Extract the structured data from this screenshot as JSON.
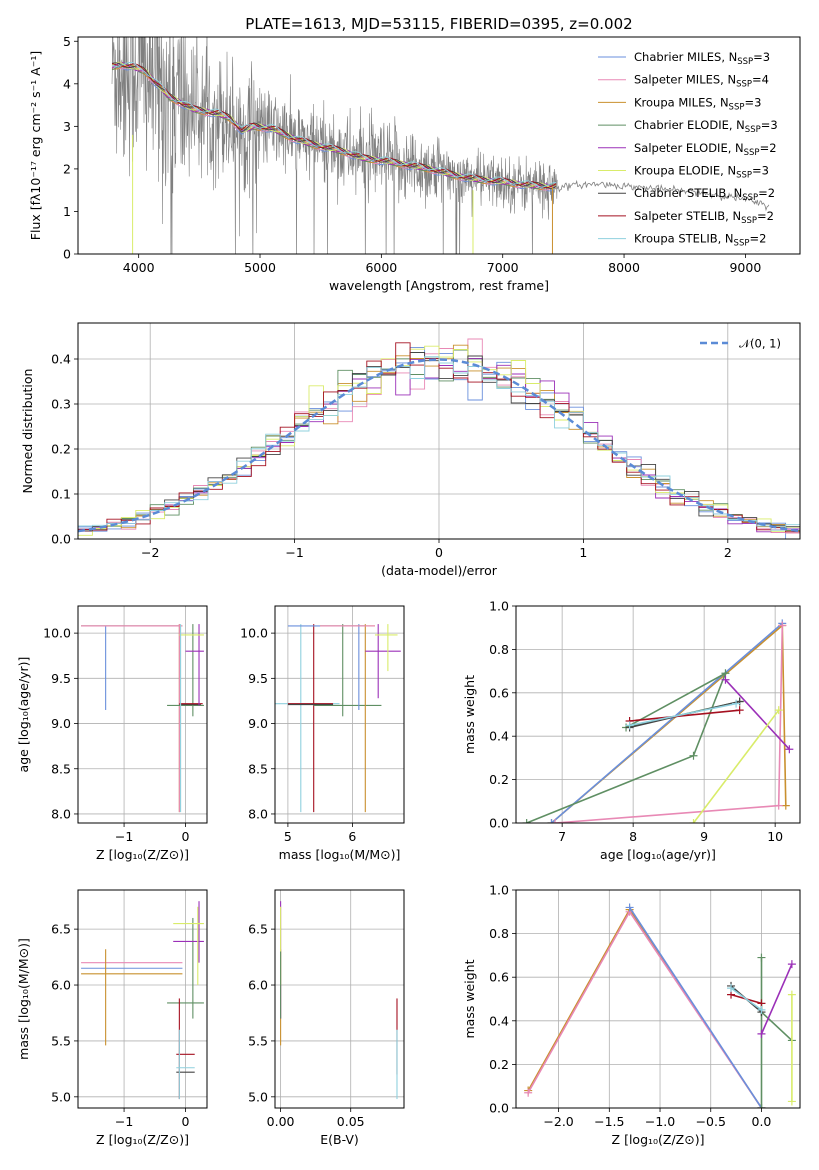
{
  "colors": {
    "Chabrier MILES": "#6a8fdc",
    "Salpeter MILES": "#e889b5",
    "Kroupa MILES": "#c9902e",
    "Chabrier ELODIE": "#5f8f63",
    "Salpeter ELODIE": "#9b30b8",
    "Kroupa ELODIE": "#d9ec6a",
    "Chabrier STELIB": "#444444",
    "Salpeter STELIB": "#a51020",
    "Kroupa STELIB": "#8fd0de",
    "data": "#808080",
    "normal": "#5b8bd6"
  },
  "chart_data": [
    {
      "id": "spectrum",
      "type": "line",
      "title": "PLATE=1613, MJD=53115, FIBERID=0395, z=0.002",
      "xlabel": "wavelength [Angstrom, rest frame]",
      "ylabel": "Flux [fλ10⁻¹⁷ erg cm⁻² s⁻¹ A⁻¹]",
      "xlim": [
        3500,
        9450
      ],
      "ylim": [
        0,
        5.1
      ],
      "xticks": [
        4000,
        5000,
        6000,
        7000,
        8000,
        9000
      ],
      "yticks": [
        0,
        1,
        2,
        3,
        4,
        5
      ],
      "grid": false,
      "legend_position": "top-right",
      "legend": [
        {
          "series": "Chabrier MILES",
          "label": "Chabrier MILES, N",
          "sub": "SSP",
          "tail": "=3"
        },
        {
          "series": "Salpeter MILES",
          "label": "Salpeter MILES, N",
          "sub": "SSP",
          "tail": "=4"
        },
        {
          "series": "Kroupa MILES",
          "label": "Kroupa MILES, N",
          "sub": "SSP",
          "tail": "=3"
        },
        {
          "series": "Chabrier ELODIE",
          "label": "Chabrier ELODIE, N",
          "sub": "SSP",
          "tail": "=3"
        },
        {
          "series": "Salpeter ELODIE",
          "label": "Salpeter ELODIE, N",
          "sub": "SSP",
          "tail": "=2"
        },
        {
          "series": "Kroupa ELODIE",
          "label": "Kroupa ELODIE, N",
          "sub": "SSP",
          "tail": "=3"
        },
        {
          "series": "Chabrier STELIB",
          "label": "Chabrier STELIB, N",
          "sub": "SSP",
          "tail": "=2"
        },
        {
          "series": "Salpeter STELIB",
          "label": "Salpeter STELIB, N",
          "sub": "SSP",
          "tail": "=2"
        },
        {
          "series": "Kroupa STELIB",
          "label": "Kroupa STELIB, N",
          "sub": "SSP",
          "tail": "=2"
        }
      ],
      "model_continuum": {
        "x": [
          3780,
          3850,
          3950,
          4050,
          4150,
          4250,
          4350,
          4450,
          4550,
          4650,
          4750,
          4850,
          4950,
          5100,
          5250,
          5400,
          5550,
          5700,
          5850,
          6000,
          6200,
          6400,
          6600,
          6800,
          7000,
          7200,
          7400
        ],
        "y": [
          4.4,
          4.45,
          4.4,
          4.3,
          4.0,
          3.7,
          3.55,
          3.4,
          3.35,
          3.3,
          3.2,
          2.9,
          3.0,
          2.95,
          2.75,
          2.6,
          2.5,
          2.4,
          2.25,
          2.2,
          2.1,
          2.0,
          1.85,
          1.75,
          1.7,
          1.62,
          1.58
        ]
      },
      "tail": {
        "x": [
          7450,
          7600,
          7800,
          8000,
          8200,
          8400,
          8600,
          8800,
          9000,
          9200
        ],
        "y": [
          1.55,
          1.62,
          1.65,
          1.6,
          1.55,
          1.5,
          1.45,
          1.38,
          1.28,
          1.12
        ]
      },
      "data_range": [
        3780,
        7450
      ]
    },
    {
      "id": "residuals",
      "type": "histogram",
      "xlabel": "(data-model)/error",
      "ylabel": "Normed distribution",
      "xlim": [
        -2.5,
        2.5
      ],
      "ylim": [
        0,
        0.48
      ],
      "xticks": [
        -2,
        -1,
        0,
        1,
        2
      ],
      "yticks": [
        0.0,
        0.1,
        0.2,
        0.3,
        0.4
      ],
      "grid": true,
      "bin_width": 0.1,
      "legend_position": "top-right",
      "legend_label": "𝒩(0, 1)"
    },
    {
      "id": "age-vs-Z",
      "type": "errorbar",
      "xlabel": "Z [log₁₀(Z/Z⊙)]",
      "ylabel": "age  [log₁₀(age/yr)]",
      "xlim": [
        -1.75,
        0.35
      ],
      "ylim": [
        7.9,
        10.3
      ],
      "xticks": [
        -1,
        0
      ],
      "yticks": [
        8.0,
        8.5,
        9.0,
        9.5,
        10.0
      ],
      "grid": true
    },
    {
      "id": "age-vs-mass",
      "type": "errorbar",
      "xlabel": "mass [log₁₀(M/M⊙)]",
      "ylabel": "",
      "xlim": [
        4.8,
        6.8
      ],
      "ylim": [
        7.9,
        10.3
      ],
      "xticks": [
        5,
        6
      ],
      "yticks": [
        8.0,
        8.5,
        9.0,
        9.5,
        10.0
      ],
      "grid": true
    },
    {
      "id": "weight-vs-age",
      "type": "line",
      "xlabel": "age  [log₁₀(age/yr)]",
      "ylabel": "mass weight",
      "xlim": [
        6.35,
        10.35
      ],
      "ylim": [
        0,
        1.0
      ],
      "xticks": [
        7,
        8,
        9,
        10
      ],
      "yticks": [
        0.0,
        0.2,
        0.4,
        0.6,
        0.8,
        1.0
      ],
      "grid": true
    },
    {
      "id": "mass-vs-Z",
      "type": "errorbar",
      "xlabel": "Z [log₁₀(Z/Z⊙)]",
      "ylabel": "mass [log₁₀(M/M⊙)]",
      "xlim": [
        -1.75,
        0.35
      ],
      "ylim": [
        4.9,
        6.85
      ],
      "xticks": [
        -1,
        0
      ],
      "yticks": [
        5.0,
        5.5,
        6.0,
        6.5
      ],
      "grid": true
    },
    {
      "id": "mass-vs-ebv",
      "type": "errorbar",
      "xlabel": "E(B-V)",
      "ylabel": "",
      "xlim": [
        -0.004,
        0.088
      ],
      "ylim": [
        4.9,
        6.85
      ],
      "xticks": [
        0.0,
        0.05
      ],
      "xtick_labels": [
        "0.00",
        "0.05"
      ],
      "yticks": [
        5.0,
        5.5,
        6.0,
        6.5
      ],
      "grid": true
    },
    {
      "id": "weight-vs-Z",
      "type": "line",
      "xlabel": "Z [log₁₀(Z/Z⊙)]",
      "ylabel": "mass weight",
      "xlim": [
        -2.42,
        0.38
      ],
      "ylim": [
        0,
        1.0
      ],
      "xticks": [
        -2.0,
        -1.5,
        -1.0,
        -0.5,
        0.0
      ],
      "xtick_labels": [
        "−2.0",
        "−1.5",
        "−1.0",
        "−0.5",
        "0.0"
      ],
      "yticks": [
        0.0,
        0.2,
        0.4,
        0.6,
        0.8,
        1.0
      ],
      "grid": true
    }
  ]
}
